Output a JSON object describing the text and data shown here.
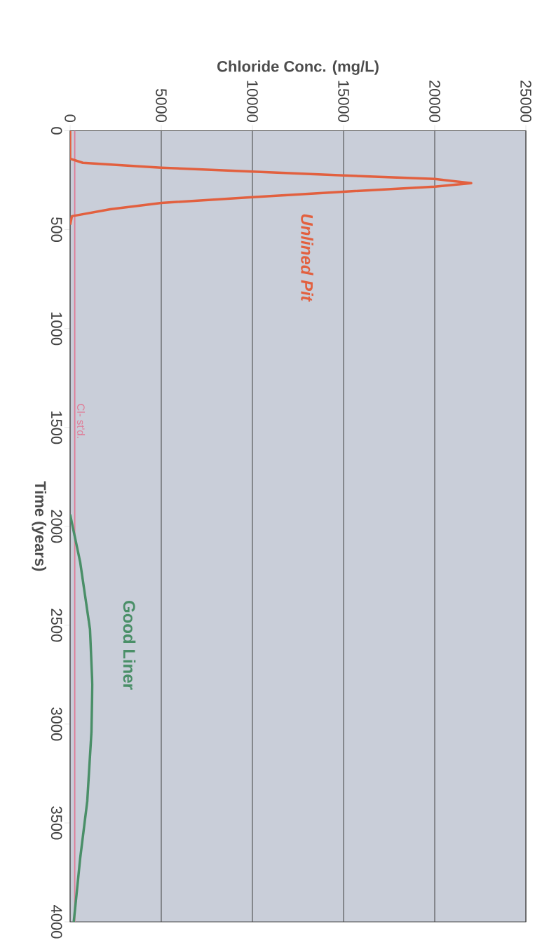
{
  "chart_data": {
    "type": "line",
    "xlabel": "Chloride Conc. (mg/L)",
    "ylabel": "Time (years)",
    "xlim": [
      0,
      25000
    ],
    "ylim": [
      4000,
      0
    ],
    "xticks": [
      0,
      5000,
      10000,
      15000,
      20000,
      25000
    ],
    "yticks": [
      0,
      500,
      1000,
      1500,
      2000,
      2500,
      3000,
      3500,
      4000
    ],
    "grid": "x",
    "legend": false,
    "series": [
      {
        "name": "Unlined Pit",
        "color": "#e2603f",
        "values": [
          0,
          141,
          162,
          187,
          206,
          226,
          244,
          265,
          283,
          308,
          336,
          365,
          397,
          432,
          475
        ],
        "x": [
          0,
          0,
          700,
          5000,
          10000,
          15000,
          20000,
          22000,
          20000,
          15000,
          10000,
          5000,
          2200,
          100,
          0
        ]
      },
      {
        "name": "Good Liner",
        "color": "#4a8f68",
        "values": [
          1940,
          2180,
          2520,
          2800,
          3040,
          3390,
          3680,
          4000
        ],
        "x": [
          0,
          550,
          1090,
          1220,
          1170,
          940,
          550,
          200
        ]
      }
    ],
    "ref_lines": [
      {
        "axis": "x",
        "value": 250,
        "label": "Cl- st'd.",
        "color": "#e07a95"
      }
    ]
  }
}
